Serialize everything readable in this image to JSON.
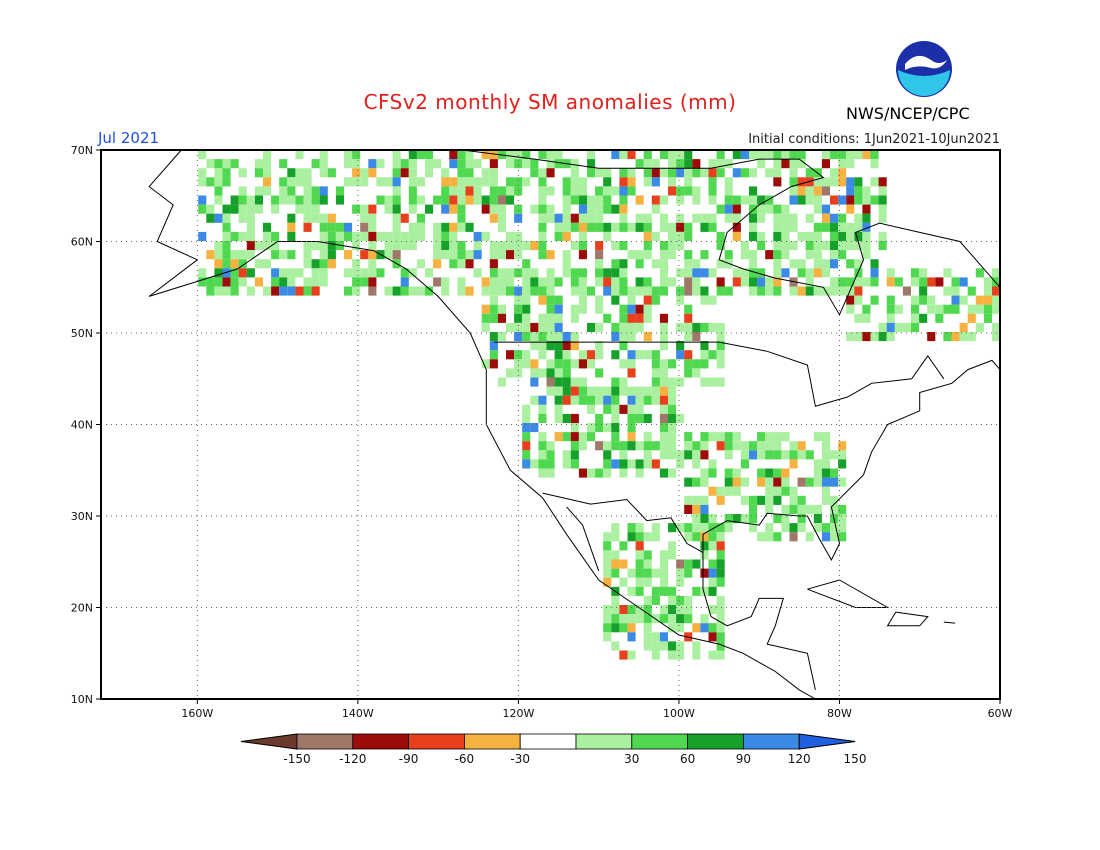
{
  "header": {
    "title": "CFSv2 monthly SM anomalies (mm)",
    "month": "Jul 2021",
    "initial_conditions": "Initial conditions: 1Jun2021-10Jun2021",
    "agency": "NWS/NCEP/CPC",
    "logo_text": "NOAA"
  },
  "map": {
    "lon_range": [
      -172,
      -60
    ],
    "lat_range": [
      10,
      70
    ],
    "lat_ticks": [
      {
        "value": 70,
        "label": "70N"
      },
      {
        "value": 60,
        "label": "60N"
      },
      {
        "value": 50,
        "label": "50N"
      },
      {
        "value": 40,
        "label": "40N"
      },
      {
        "value": 30,
        "label": "30N"
      },
      {
        "value": 20,
        "label": "20N"
      },
      {
        "value": 10,
        "label": "10N"
      }
    ],
    "lon_ticks": [
      {
        "value": -160,
        "label": "160W"
      },
      {
        "value": -140,
        "label": "140W"
      },
      {
        "value": -120,
        "label": "120W"
      },
      {
        "value": -100,
        "label": "100W"
      },
      {
        "value": -80,
        "label": "80W"
      },
      {
        "value": -60,
        "label": "60W"
      }
    ],
    "grid": true
  },
  "colorbar": {
    "labels": [
      "-150",
      "-120",
      "-90",
      "-60",
      "-30",
      "30",
      "60",
      "90",
      "120",
      "150"
    ],
    "colors": [
      "#6b3a2c",
      "#a0786a",
      "#9e0b0b",
      "#e8401c",
      "#f5b240",
      "#ffffff",
      "#aaf0a0",
      "#50d850",
      "#16a12a",
      "#3a8ae6",
      "#2060e0"
    ]
  }
}
